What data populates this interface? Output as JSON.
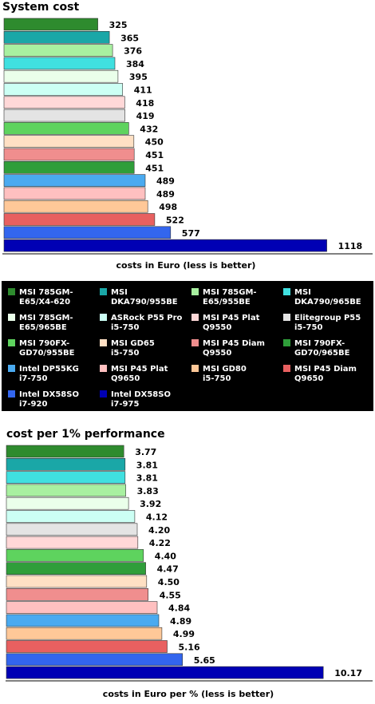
{
  "chart_data": [
    {
      "type": "bar",
      "orientation": "horizontal",
      "title": "System cost",
      "xlabel": "costs in Euro (less is better)",
      "xlim": [
        0,
        1180
      ],
      "series": [
        {
          "name": "MSI 785GM-E65/X4-620",
          "value": 325,
          "label": "325",
          "color": "#2e8b2e"
        },
        {
          "name": "MSI DKA790/955BE",
          "value": 365,
          "label": "365",
          "color": "#1aa7a7"
        },
        {
          "name": "MSI 785GM-E65/955BE",
          "value": 376,
          "label": "376",
          "color": "#a8f0a0"
        },
        {
          "name": "MSI DKA790/965BE",
          "value": 384,
          "label": "384",
          "color": "#40e0e0"
        },
        {
          "name": "MSI 785GM-E65/965BE",
          "value": 395,
          "label": "395",
          "color": "#eaffea"
        },
        {
          "name": "ASRock P55 Pro i5-750",
          "value": 411,
          "label": "411",
          "color": "#ccfff4"
        },
        {
          "name": "MSI P45 Plat Q9550",
          "value": 418,
          "label": "418",
          "color": "#ffd8d8"
        },
        {
          "name": "Elitegroup P55 i5-750",
          "value": 419,
          "label": "419",
          "color": "#e4e4e4"
        },
        {
          "name": "MSI 790FX-GD70/955BE",
          "value": 432,
          "label": "432",
          "color": "#5ed35e"
        },
        {
          "name": "MSI GD65 i5-750",
          "value": 450,
          "label": "450",
          "color": "#ffe0c4"
        },
        {
          "name": "MSI P45 Diam Q9550",
          "value": 451,
          "label": "451",
          "color": "#f08e8e"
        },
        {
          "name": "MSI 790FX-GD70/965BE",
          "value": 451,
          "label": "451",
          "color": "#2f9e3a"
        },
        {
          "name": "Intel DP55KG i7-750",
          "value": 489,
          "label": "489",
          "color": "#4aaaf0"
        },
        {
          "name": "MSI P45 Plat Q9650",
          "value": 489,
          "label": "489",
          "color": "#ffc0c0"
        },
        {
          "name": "MSI GD80 i5-750",
          "value": 498,
          "label": "498",
          "color": "#ffc898"
        },
        {
          "name": "MSI P45 Diam Q9650",
          "value": 522,
          "label": "522",
          "color": "#e86060"
        },
        {
          "name": "Intel DX58SO i7-920",
          "value": 577,
          "label": "577",
          "color": "#3366ee"
        },
        {
          "name": "Intel DX58SO i7-975",
          "value": 1118,
          "label": "1118",
          "color": "#0000b4"
        }
      ]
    },
    {
      "type": "bar",
      "orientation": "horizontal",
      "title": "cost per 1% performance",
      "xlabel": "costs in Euro per % (less is better)",
      "xlim": [
        0,
        10.6
      ],
      "series": [
        {
          "name": "MSI 785GM-E65/X4-620",
          "value": 3.77,
          "label": "3.77",
          "color": "#2e8b2e"
        },
        {
          "name": "MSI DKA790/955BE",
          "value": 3.81,
          "label": "3.81",
          "color": "#1aa7a7"
        },
        {
          "name": "MSI DKA790/965BE",
          "value": 3.81,
          "label": "3.81",
          "color": "#40e0e0"
        },
        {
          "name": "MSI 785GM-E65/955BE",
          "value": 3.83,
          "label": "3.83",
          "color": "#a8f0a0"
        },
        {
          "name": "MSI 785GM-E65/965BE",
          "value": 3.92,
          "label": "3.92",
          "color": "#eaffea"
        },
        {
          "name": "ASRock P55 Pro i5-750",
          "value": 4.12,
          "label": "4.12",
          "color": "#ccfff4"
        },
        {
          "name": "Elitegroup P55 i5-750",
          "value": 4.2,
          "label": "4.20",
          "color": "#e4e4e4"
        },
        {
          "name": "MSI P45 Plat Q9550",
          "value": 4.22,
          "label": "4.22",
          "color": "#ffd8d8"
        },
        {
          "name": "MSI 790FX-GD70/955BE",
          "value": 4.4,
          "label": "4.40",
          "color": "#5ed35e"
        },
        {
          "name": "MSI 790FX-GD70/965BE",
          "value": 4.47,
          "label": "4.47",
          "color": "#2f9e3a"
        },
        {
          "name": "MSI GD65 i5-750",
          "value": 4.5,
          "label": "4.50",
          "color": "#ffe0c4"
        },
        {
          "name": "MSI P45 Diam Q9550",
          "value": 4.55,
          "label": "4.55",
          "color": "#f08e8e"
        },
        {
          "name": "MSI P45 Plat Q9650",
          "value": 4.84,
          "label": "4.84",
          "color": "#ffc0c0"
        },
        {
          "name": "Intel DP55KG i7-750",
          "value": 4.89,
          "label": "4.89",
          "color": "#4aaaf0"
        },
        {
          "name": "MSI GD80 i5-750",
          "value": 4.99,
          "label": "4.99",
          "color": "#ffc898"
        },
        {
          "name": "MSI P45 Diam Q9650",
          "value": 5.16,
          "label": "5.16",
          "color": "#e86060"
        },
        {
          "name": "Intel DX58SO i7-920",
          "value": 5.65,
          "label": "5.65",
          "color": "#3366ee"
        },
        {
          "name": "Intel DX58SO i7-975",
          "value": 10.17,
          "label": "10.17",
          "color": "#0000b4"
        }
      ]
    }
  ],
  "legend": {
    "items": [
      {
        "lines": [
          "MSI 785GM-",
          "E65/X4-620"
        ],
        "color": "#2e8b2e"
      },
      {
        "lines": [
          "MSI",
          "DKA790/955BE"
        ],
        "color": "#1aa7a7"
      },
      {
        "lines": [
          "MSI 785GM-",
          "E65/955BE"
        ],
        "color": "#a8f0a0"
      },
      {
        "lines": [
          "MSI",
          "DKA790/965BE"
        ],
        "color": "#40e0e0"
      },
      {
        "lines": [
          "MSI 785GM-",
          "E65/965BE"
        ],
        "color": "#eaffea"
      },
      {
        "lines": [
          "ASRock P55 Pro",
          "i5-750"
        ],
        "color": "#ccfff4"
      },
      {
        "lines": [
          "MSI P45 Plat",
          "Q9550"
        ],
        "color": "#ffd8d8"
      },
      {
        "lines": [
          "Elitegroup P55",
          "i5-750"
        ],
        "color": "#e4e4e4"
      },
      {
        "lines": [
          "MSI 790FX-",
          "GD70/955BE"
        ],
        "color": "#5ed35e"
      },
      {
        "lines": [
          "MSI GD65",
          "i5-750"
        ],
        "color": "#ffe0c4"
      },
      {
        "lines": [
          "MSI P45 Diam",
          "Q9550"
        ],
        "color": "#f08e8e"
      },
      {
        "lines": [
          "MSI 790FX-",
          "GD70/965BE"
        ],
        "color": "#2f9e3a"
      },
      {
        "lines": [
          "Intel DP55KG",
          "i7-750"
        ],
        "color": "#4aaaf0"
      },
      {
        "lines": [
          "MSI P45 Plat",
          "Q9650"
        ],
        "color": "#ffc0c0"
      },
      {
        "lines": [
          "MSI GD80",
          "i5-750"
        ],
        "color": "#ffc898"
      },
      {
        "lines": [
          "MSI P45 Diam",
          "Q9650"
        ],
        "color": "#e86060"
      },
      {
        "lines": [
          "Intel DX58SO",
          "i7-920"
        ],
        "color": "#3366ee"
      },
      {
        "lines": [
          "Intel DX58SO",
          "i7-975"
        ],
        "color": "#0000b4"
      }
    ]
  }
}
